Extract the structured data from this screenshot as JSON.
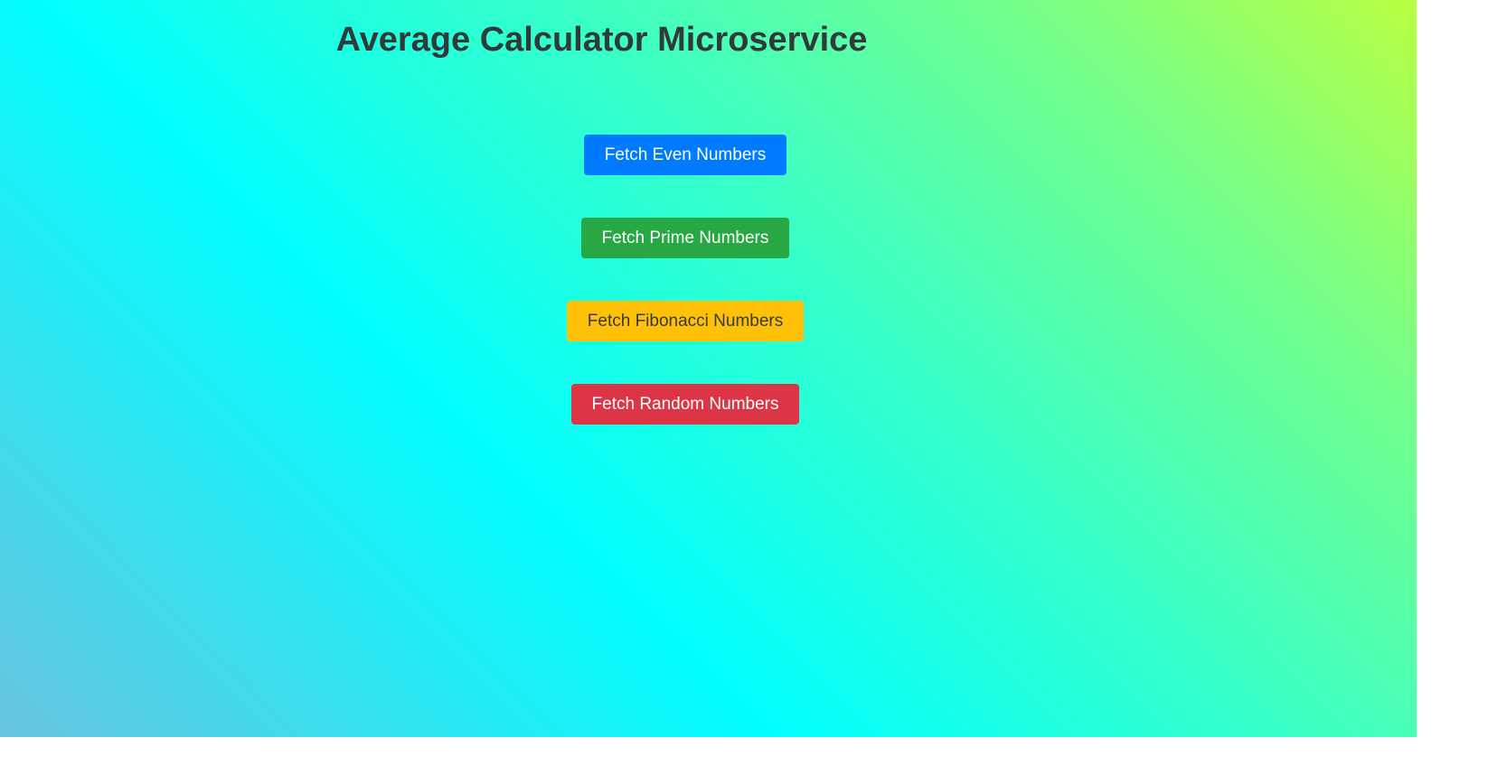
{
  "page": {
    "title": "Average Calculator Microservice"
  },
  "buttons": {
    "even": {
      "label": "Fetch Even Numbers",
      "color": "#007bff"
    },
    "prime": {
      "label": "Fetch Prime Numbers",
      "color": "#28a745"
    },
    "fibonacci": {
      "label": "Fetch Fibonacci Numbers",
      "color": "#ffc107"
    },
    "random": {
      "label": "Fetch Random Numbers",
      "color": "#dc3545"
    }
  },
  "colors": {
    "title_text": "#2f3a3a",
    "background_gradient": [
      "#6ac4e0",
      "#00ffff",
      "#33ffcc",
      "#77ff88",
      "#b8ff40"
    ]
  }
}
